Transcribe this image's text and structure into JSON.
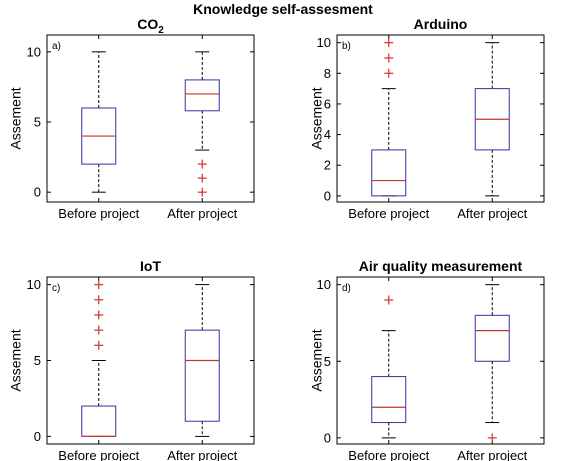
{
  "figure": {
    "title": "Knowledge self-assesment"
  },
  "colors": {
    "box": "#3232a8",
    "median": "#c0392b",
    "outlier": "#d63c3c",
    "whisker": "#000000",
    "axis": "#000000"
  },
  "chart_data": [
    {
      "type": "box",
      "title_main": "CO",
      "title_sub": "2",
      "panel_label": "a)",
      "ylabel": "Assement",
      "xlabel": "",
      "ylim": [
        -0.7,
        11.2
      ],
      "yticks": [
        0,
        5,
        10
      ],
      "categories": [
        "Before project",
        "After project"
      ],
      "boxes": [
        {
          "min": 0,
          "q1": 2,
          "median": 4,
          "q3": 6,
          "max": 10,
          "outliers": []
        },
        {
          "min": 3,
          "q1": 5.8,
          "median": 7,
          "q3": 8,
          "max": 10,
          "outliers": [
            2,
            1,
            0
          ]
        }
      ]
    },
    {
      "type": "box",
      "title_main": "Arduino",
      "title_sub": "",
      "panel_label": "b)",
      "ylabel": "Assement",
      "xlabel": "",
      "ylim": [
        -0.4,
        10.5
      ],
      "yticks": [
        0,
        2,
        4,
        6,
        8,
        10
      ],
      "categories": [
        "Before project",
        "After project"
      ],
      "boxes": [
        {
          "min": 0,
          "q1": 0,
          "median": 1,
          "q3": 3,
          "max": 7,
          "outliers": [
            10,
            9,
            8
          ]
        },
        {
          "min": 0,
          "q1": 3,
          "median": 5,
          "q3": 7,
          "max": 10,
          "outliers": []
        }
      ]
    },
    {
      "type": "box",
      "title_main": "IoT",
      "title_sub": "",
      "panel_label": "c)",
      "ylabel": "Assement",
      "xlabel": "",
      "ylim": [
        -0.5,
        10.5
      ],
      "yticks": [
        0,
        5,
        10
      ],
      "categories": [
        "Before project",
        "After project"
      ],
      "boxes": [
        {
          "min": 0,
          "q1": 0,
          "median": 0,
          "q3": 2,
          "max": 5,
          "outliers": [
            10,
            9,
            8,
            7,
            6
          ]
        },
        {
          "min": 0,
          "q1": 1,
          "median": 5,
          "q3": 7,
          "max": 10,
          "outliers": []
        }
      ]
    },
    {
      "type": "box",
      "title_main": "Air quality measurement",
      "title_sub": "",
      "panel_label": "d)",
      "ylabel": "Assement",
      "xlabel": "",
      "ylim": [
        -0.4,
        10.5
      ],
      "yticks": [
        0,
        5,
        10
      ],
      "categories": [
        "Before project",
        "After project"
      ],
      "boxes": [
        {
          "min": 0,
          "q1": 1,
          "median": 2,
          "q3": 4,
          "max": 7,
          "outliers": [
            9
          ]
        },
        {
          "min": 1,
          "q1": 5,
          "median": 7,
          "q3": 8,
          "max": 10,
          "outliers": [
            0
          ]
        }
      ]
    }
  ]
}
